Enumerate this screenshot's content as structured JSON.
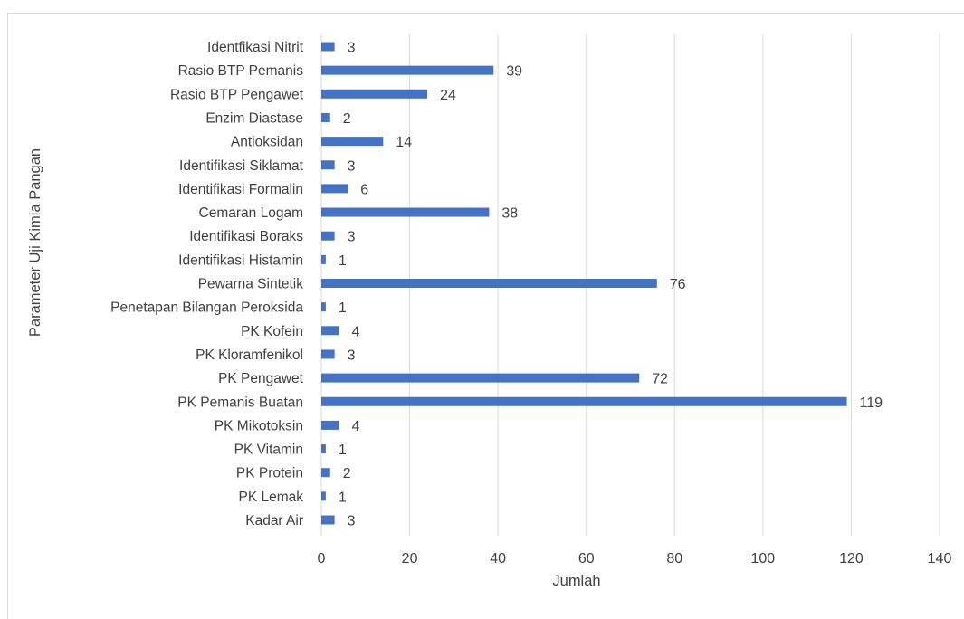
{
  "chart_data": {
    "type": "bar",
    "orientation": "horizontal",
    "categories": [
      "Identfikasi Nitrit",
      "Rasio BTP Pemanis",
      "Rasio BTP Pengawet",
      "Enzim Diastase",
      "Antioksidan",
      "Identifikasi Siklamat",
      "Identifikasi Formalin",
      "Cemaran Logam",
      "Identifikasi Boraks",
      "Identifikasi Histamin",
      "Pewarna Sintetik",
      "Penetapan Bilangan Peroksida",
      "PK Kofein",
      "PK Kloramfenikol",
      "PK Pengawet",
      "PK Pemanis Buatan",
      "PK Mikotoksin",
      "PK Vitamin",
      "PK Protein",
      "PK Lemak",
      "Kadar Air"
    ],
    "values": [
      3,
      39,
      24,
      2,
      14,
      3,
      6,
      38,
      3,
      1,
      76,
      1,
      4,
      3,
      72,
      119,
      4,
      1,
      2,
      1,
      3
    ],
    "data_labels": [
      "3",
      "39",
      "24",
      "2",
      "14",
      "3",
      "6",
      "38",
      "3",
      "1",
      "76",
      "1",
      "4",
      "3",
      "72",
      "119",
      "4",
      "1",
      "2",
      "1",
      "3"
    ],
    "xticks": [
      "0",
      "20",
      "40",
      "60",
      "80",
      "100",
      "120",
      "140"
    ],
    "xlim": [
      0,
      140
    ],
    "xlabel": "Jumlah",
    "ylabel": "Parameter Uji Kimia Pangan",
    "title": "",
    "grid": true,
    "legend": "none",
    "colors": {
      "bar": "#4472c4",
      "grid": "#d9d9d9",
      "text": "#404040"
    }
  }
}
